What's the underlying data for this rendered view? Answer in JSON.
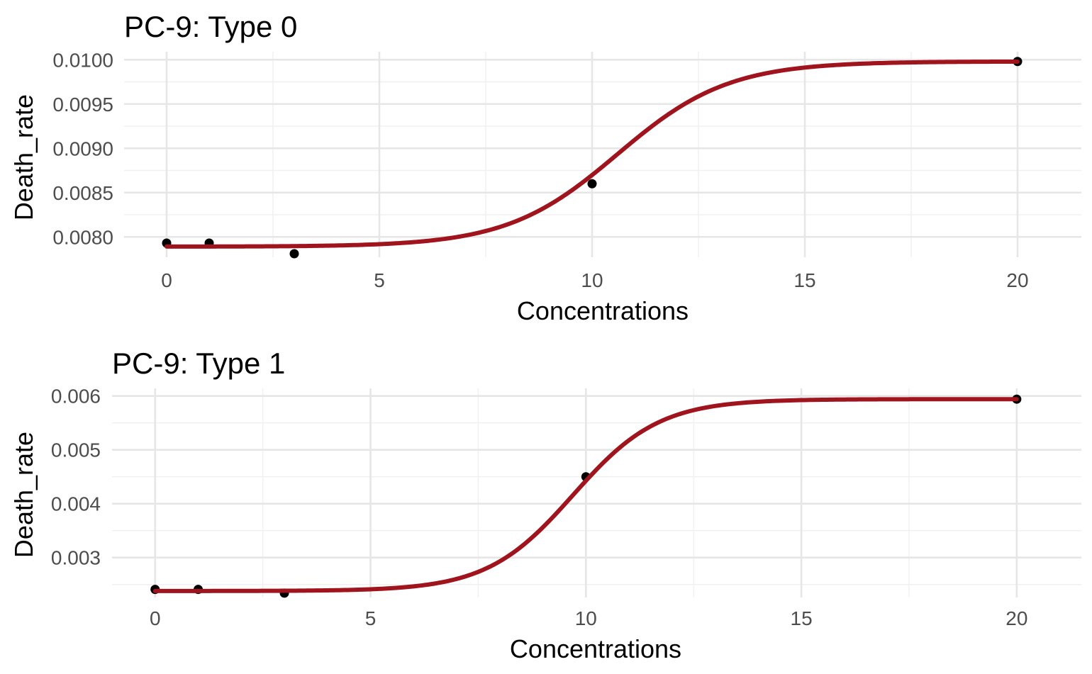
{
  "chart_data": [
    {
      "type": "scatter",
      "title": "PC-9: Type 0",
      "xlabel": "Concentrations",
      "ylabel": "Death_rate",
      "x_ticks": [
        0,
        5,
        10,
        15,
        20
      ],
      "x_tick_labels": [
        "0",
        "5",
        "10",
        "15",
        "20"
      ],
      "y_ticks": [
        0.008,
        0.0085,
        0.009,
        0.0095,
        0.01
      ],
      "y_tick_labels": [
        "0.0080",
        "0.0085",
        "0.0090",
        "0.0095",
        "0.0100"
      ],
      "xlim": [
        -1,
        21.5
      ],
      "ylim": [
        0.00777,
        0.01009
      ],
      "grid": true,
      "points": {
        "x": [
          0,
          1,
          3,
          10,
          20
        ],
        "y": [
          0.00793,
          0.00793,
          0.00781,
          0.0086,
          0.00998
        ],
        "color": "#000000"
      },
      "fit": {
        "model": "logistic",
        "lower": 0.00789,
        "upper": 0.00998,
        "midpoint": 10.6,
        "scale": 1.3,
        "color": "#a0141e"
      }
    },
    {
      "type": "scatter",
      "title": "PC-9: Type 1",
      "xlabel": "Concentrations",
      "ylabel": "Death_rate",
      "x_ticks": [
        0,
        5,
        10,
        15,
        20
      ],
      "x_tick_labels": [
        "0",
        "5",
        "10",
        "15",
        "20"
      ],
      "y_ticks": [
        0.003,
        0.004,
        0.005,
        0.006
      ],
      "y_tick_labels": [
        "0.003",
        "0.004",
        "0.005",
        "0.006"
      ],
      "xlim": [
        -1,
        21.5
      ],
      "ylim": [
        0.00226,
        0.00614
      ],
      "grid": true,
      "points": {
        "x": [
          0,
          1,
          3,
          10,
          20
        ],
        "y": [
          0.00241,
          0.00241,
          0.00234,
          0.0045,
          0.00594
        ],
        "color": "#000000"
      },
      "fit": {
        "model": "logistic",
        "lower": 0.00238,
        "upper": 0.00594,
        "midpoint": 9.7,
        "scale": 1.0,
        "color": "#a0141e"
      }
    }
  ]
}
